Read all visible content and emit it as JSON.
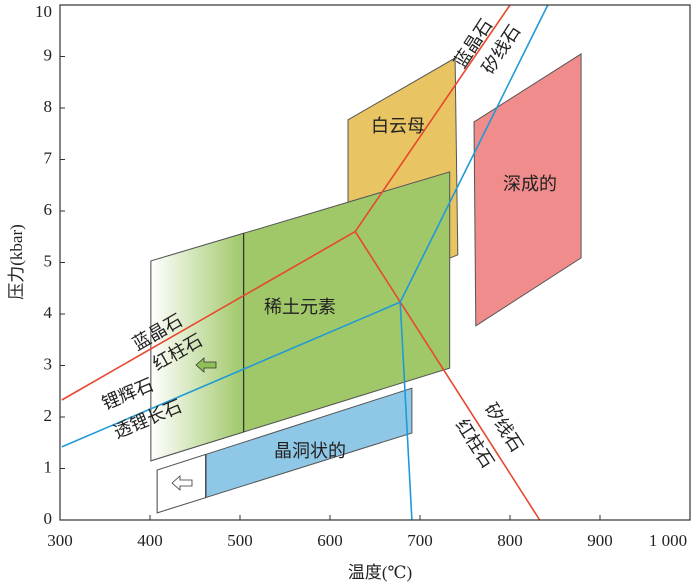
{
  "chart_data": {
    "type": "polygon",
    "xlabel": "温度(℃)",
    "ylabel": "压力(kbar)",
    "xlim": [
      300,
      1000
    ],
    "ylim": [
      0,
      10
    ],
    "xticks": [
      300,
      400,
      500,
      600,
      700,
      800,
      900,
      {
        "value": 1000,
        "label": "1 000"
      }
    ],
    "yticks": [
      0,
      1,
      2,
      3,
      4,
      5,
      6,
      7,
      8,
      9,
      10
    ],
    "regions": [
      {
        "name": "白云母",
        "color": "#e8c462",
        "x": [
          620,
          739,
          742,
          620
        ],
        "y": [
          7.77,
          8.97,
          5.15,
          4.27
        ]
      },
      {
        "name": "深成的",
        "color": "#f08c8c",
        "x": [
          760,
          879,
          879,
          762
        ],
        "y": [
          7.73,
          9.05,
          5.09,
          3.77
        ]
      },
      {
        "name": "稀土元素",
        "color": "#a0c868",
        "x": [
          401,
          733,
          733,
          401
        ],
        "y": [
          5.03,
          6.76,
          2.95,
          1.15
        ],
        "split": 504
      },
      {
        "name": "晶洞状的",
        "color": "#8fc8e6",
        "x": [
          408,
          691,
          691,
          408
        ],
        "y": [
          0.97,
          2.56,
          1.69,
          0.14
        ],
        "split": 462
      }
    ],
    "boundaries": [
      {
        "color": "#e8472e",
        "x": [
          302,
          628
        ],
        "y": [
          2.33,
          5.6
        ]
      },
      {
        "color": "#e8472e",
        "x": [
          628,
          800
        ],
        "y": [
          5.6,
          10
        ]
      },
      {
        "color": "#e8472e",
        "x": [
          628,
          833
        ],
        "y": [
          5.6,
          0
        ]
      },
      {
        "color": "#1f9ad6",
        "x": [
          302,
          678
        ],
        "y": [
          1.42,
          4.23
        ]
      },
      {
        "color": "#1f9ad6",
        "x": [
          678,
          842
        ],
        "y": [
          4.23,
          10
        ]
      },
      {
        "color": "#1f9ad6",
        "x": [
          678,
          691
        ],
        "y": [
          4.23,
          0
        ]
      }
    ],
    "line_labels": [
      {
        "text": "蓝晶石",
        "color": "#e8472e"
      },
      {
        "text": "红柱石",
        "color": "#e8472e"
      },
      {
        "text": "锂辉石",
        "color": "#1f9ad6"
      },
      {
        "text": "透锂长石",
        "color": "#1f9ad6"
      },
      {
        "text": "蓝晶石",
        "color": "#e8472e"
      },
      {
        "text": "矽线石",
        "color": "#e8472e"
      },
      {
        "text": "矽线石",
        "color": "#e8472e"
      },
      {
        "text": "红柱石",
        "color": "#e8472e"
      }
    ]
  }
}
